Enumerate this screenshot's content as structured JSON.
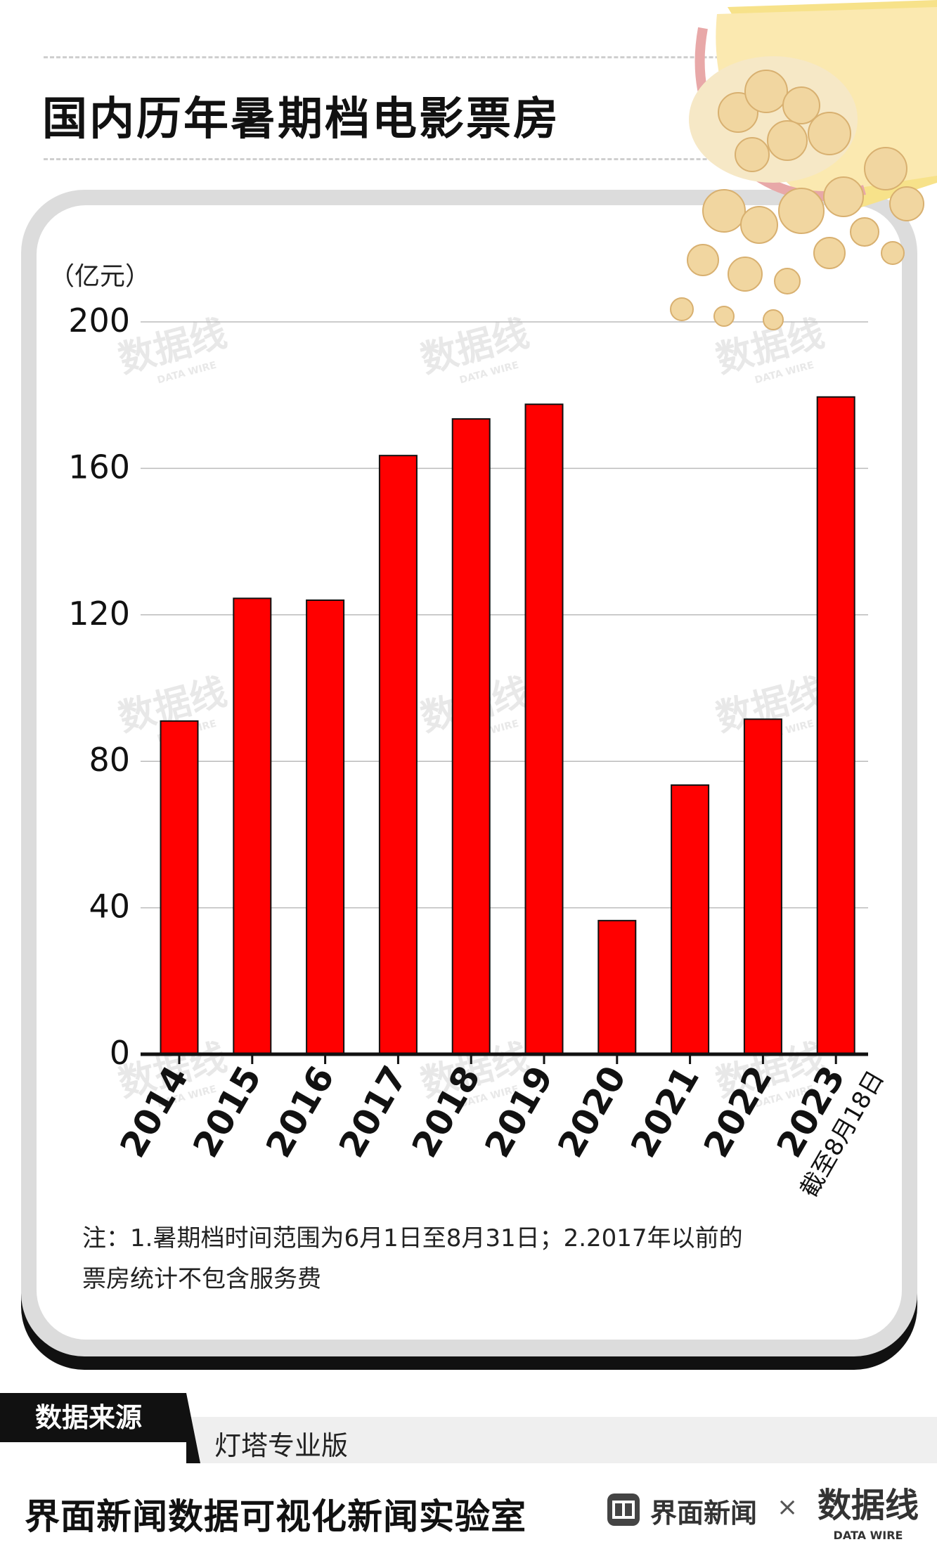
{
  "header": {
    "title": "国内历年暑期档电影票房"
  },
  "chart_data": {
    "type": "bar",
    "title": "国内历年暑期档电影票房",
    "ylabel": "（亿元）",
    "xlabel": "",
    "ylim": [
      0,
      200
    ],
    "yticks": [
      0,
      40,
      80,
      120,
      160,
      200
    ],
    "grid": true,
    "categories": [
      "2014",
      "2015",
      "2016",
      "2017",
      "2018",
      "2019",
      "2020",
      "2021",
      "2022",
      "2023"
    ],
    "values": [
      91,
      124.5,
      124,
      163.5,
      173.5,
      177.5,
      36.5,
      73.5,
      91.5,
      179.5
    ],
    "category_annotations": {
      "2023": "截至8月18日"
    },
    "bar_color": "#ff0000",
    "bar_edge_color": "#111111"
  },
  "notes": {
    "line1": "注：1.暑期档时间范围为6月1日至8月31日；2.2017年以前的",
    "line2": "票房统计不包含服务费"
  },
  "source": {
    "label": "数据来源",
    "value": "灯塔专业版"
  },
  "footer": {
    "title": "界面新闻数据可视化新闻实验室",
    "brand": "界面新闻",
    "separator": "×",
    "partner_logo": "DATA WIRE"
  },
  "watermark": {
    "text": "数据线",
    "subtext": "DATA WIRE"
  },
  "decoration": {
    "icon": "popcorn-icon"
  }
}
